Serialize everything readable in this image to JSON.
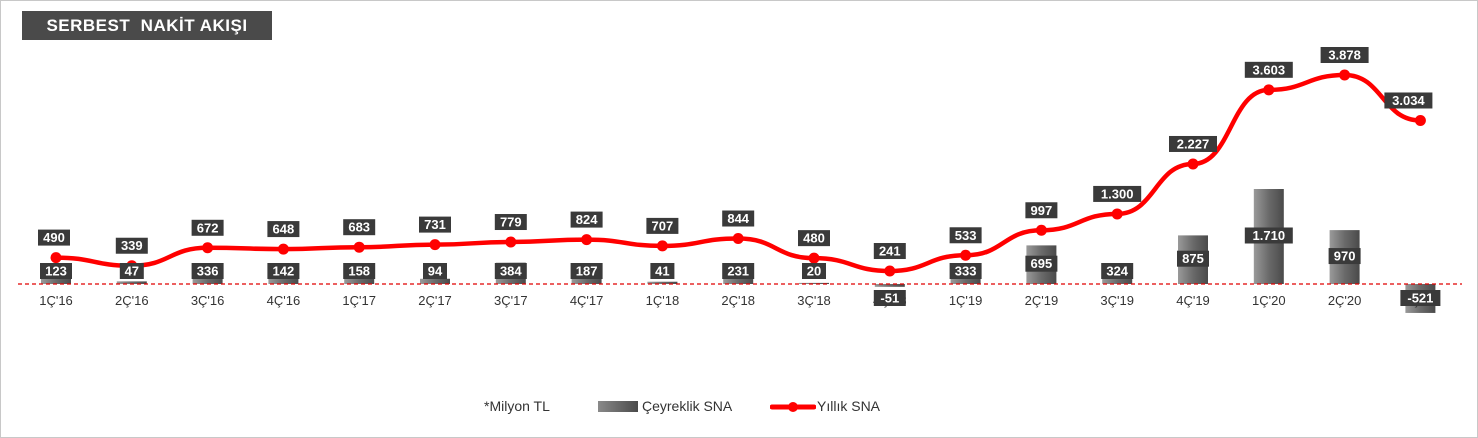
{
  "title": "SERBEST  NAKİT AKIŞI",
  "legend": {
    "unit_note": "*Milyon TL",
    "quarterly_label": "Çeyreklik SNA",
    "annual_label": "Yıllık SNA"
  },
  "colors": {
    "line": "#ff0000",
    "bar": "#6e6e6e",
    "label_box": "#3a3a3a",
    "zero_line": "#e00000"
  },
  "chart_data": {
    "type": "bar",
    "categories": [
      "1Ç'16",
      "2Ç'16",
      "3Ç'16",
      "4Ç'16",
      "1Ç'17",
      "2Ç'17",
      "3Ç'17",
      "4Ç'17",
      "1Ç'18",
      "2Ç'18",
      "3Ç'18",
      "4Ç'18",
      "1Ç'19",
      "2Ç'19",
      "3Ç'19",
      "4Ç'19",
      "1Ç'20",
      "2Ç'20",
      "3Ç'20"
    ],
    "series": [
      {
        "name": "Çeyreklik SNA",
        "type": "bar",
        "values": [
          123,
          47,
          336,
          142,
          158,
          94,
          384,
          187,
          41,
          231,
          20,
          -51,
          333,
          695,
          324,
          875,
          1710,
          970,
          -521
        ],
        "labels": [
          "123",
          "47",
          "336",
          "142",
          "158",
          "94",
          "384",
          "187",
          "41",
          "231",
          "20",
          "-51",
          "333",
          "695",
          "324",
          "875",
          "1.710",
          "970",
          "-521"
        ]
      },
      {
        "name": "Yıllık SNA",
        "type": "line",
        "values": [
          490,
          339,
          672,
          648,
          683,
          731,
          779,
          824,
          707,
          844,
          480,
          241,
          533,
          997,
          1300,
          2227,
          3603,
          3878,
          3034
        ],
        "labels": [
          "490",
          "339",
          "672",
          "648",
          "683",
          "731",
          "779",
          "824",
          "707",
          "844",
          "480",
          "241",
          "533",
          "997",
          "1.300",
          "2.227",
          "3.603",
          "3.878",
          "3.034"
        ]
      }
    ],
    "zero_line": "dashed",
    "grid": false,
    "legend_position": "bottom"
  }
}
